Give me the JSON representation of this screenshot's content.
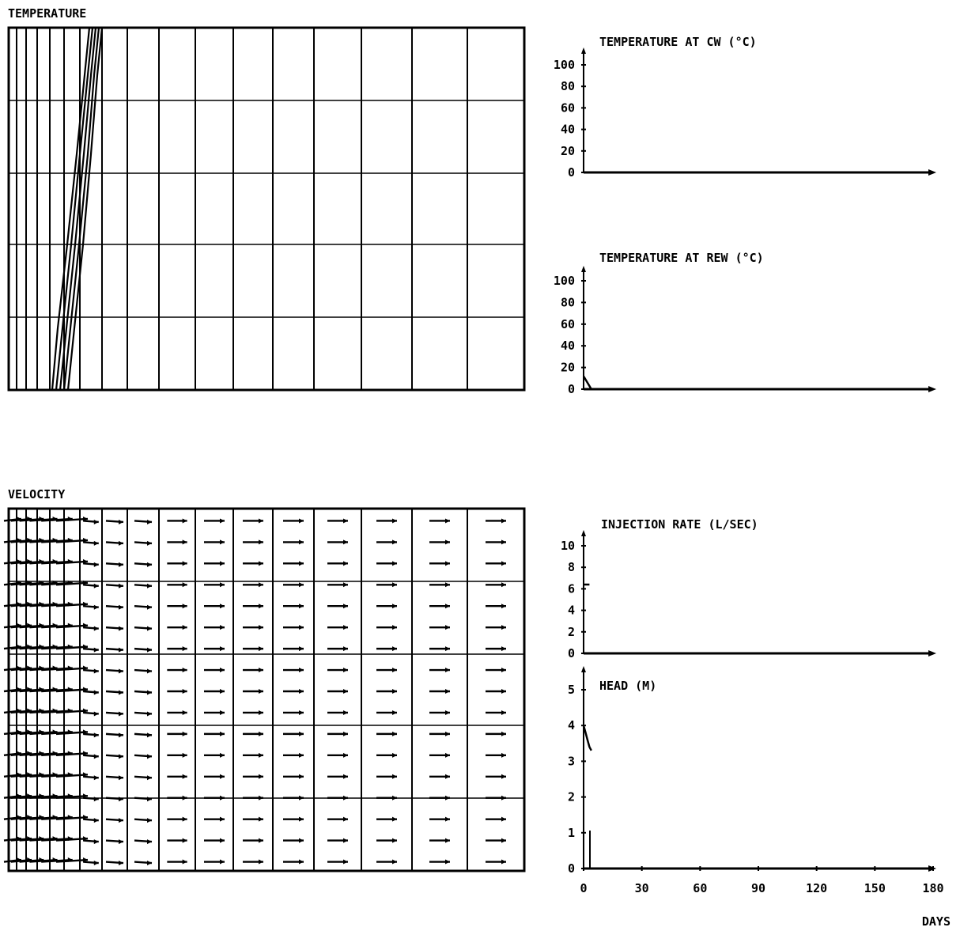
{
  "colors": {
    "ink": "#000000",
    "paper": "#ffffff"
  },
  "chart_data": [
    {
      "id": "temperature-panel",
      "type": "line",
      "title": "TEMPERATURE",
      "columns_x": [
        0,
        10,
        22,
        36,
        52,
        70,
        90,
        118,
        150,
        190,
        236,
        284,
        334,
        386,
        446,
        510,
        580,
        652
      ],
      "rows_y": [
        0,
        92,
        184,
        274,
        366,
        458
      ],
      "isotherms": [
        [
          [
            55,
            458
          ],
          [
            62,
            380
          ],
          [
            74,
            274
          ],
          [
            86,
            160
          ],
          [
            96,
            60
          ],
          [
            102,
            0
          ]
        ],
        [
          [
            60,
            458
          ],
          [
            68,
            380
          ],
          [
            79,
            274
          ],
          [
            90,
            160
          ],
          [
            100,
            60
          ],
          [
            106,
            0
          ]
        ],
        [
          [
            65,
            458
          ],
          [
            73,
            380
          ],
          [
            84,
            274
          ],
          [
            95,
            160
          ],
          [
            104,
            60
          ],
          [
            110,
            0
          ]
        ],
        [
          [
            70,
            458
          ],
          [
            78,
            380
          ],
          [
            89,
            274
          ],
          [
            100,
            160
          ],
          [
            108,
            60
          ],
          [
            114,
            0
          ]
        ],
        [
          [
            75,
            458
          ],
          [
            83,
            380
          ],
          [
            94,
            274
          ],
          [
            104,
            160
          ],
          [
            112,
            60
          ],
          [
            118,
            0
          ]
        ]
      ]
    },
    {
      "id": "temp-cw-panel",
      "type": "line",
      "title": "TEMPERATURE AT CW (°C)",
      "y_ticks": [
        "100",
        "80",
        "60",
        "40",
        "20",
        "0"
      ],
      "ylim": [
        0,
        100
      ],
      "xlim": [
        0,
        180
      ],
      "series": [
        {
          "x": [
            0,
            180
          ],
          "y": [
            0,
            0
          ]
        }
      ]
    },
    {
      "id": "temp-rew-panel",
      "type": "line",
      "title": "TEMPERATURE AT REW (°C)",
      "y_ticks": [
        "100",
        "80",
        "60",
        "40",
        "20",
        "0"
      ],
      "ylim": [
        0,
        100
      ],
      "xlim": [
        0,
        180
      ],
      "series": [
        {
          "x": [
            0,
            4,
            180
          ],
          "y": [
            12,
            0,
            0
          ]
        }
      ]
    },
    {
      "id": "velocity-panel",
      "type": "scatter",
      "title": "VELOCITY",
      "columns_x": [
        0,
        10,
        22,
        36,
        52,
        70,
        90,
        118,
        150,
        190,
        236,
        284,
        334,
        386,
        446,
        510,
        580,
        652
      ],
      "rows_y": [
        0,
        92,
        184,
        274,
        366,
        458
      ],
      "arrow_columns": [
        0,
        1,
        2,
        3,
        4,
        5,
        6,
        7,
        8,
        9,
        10,
        11,
        12,
        13,
        14,
        15,
        16
      ],
      "arrow_rows": 17
    },
    {
      "id": "injection-panel",
      "type": "line",
      "title": "INJECTION RATE (L/SEC)",
      "y_ticks": [
        "10",
        "8",
        "6",
        "4",
        "2",
        "0"
      ],
      "ylim": [
        0,
        10
      ],
      "xlim": [
        0,
        180
      ],
      "series": [
        {
          "x": [
            0,
            3
          ],
          "y": [
            6.4,
            6.4
          ]
        }
      ]
    },
    {
      "id": "head-panel",
      "type": "line",
      "title": "HEAD (M)",
      "y_ticks": [
        "5",
        "4",
        "3",
        "2",
        "1",
        "0"
      ],
      "ylim": [
        0,
        5
      ],
      "xlim": [
        0,
        180
      ],
      "x_ticks": [
        "0",
        "30",
        "60",
        "90",
        "120",
        "150",
        "180"
      ],
      "xlabel": "DAYS",
      "series": [
        {
          "x": [
            0,
            1,
            2,
            3,
            4
          ],
          "y": [
            4.0,
            3.8,
            3.6,
            3.4,
            3.3
          ]
        }
      ]
    }
  ]
}
